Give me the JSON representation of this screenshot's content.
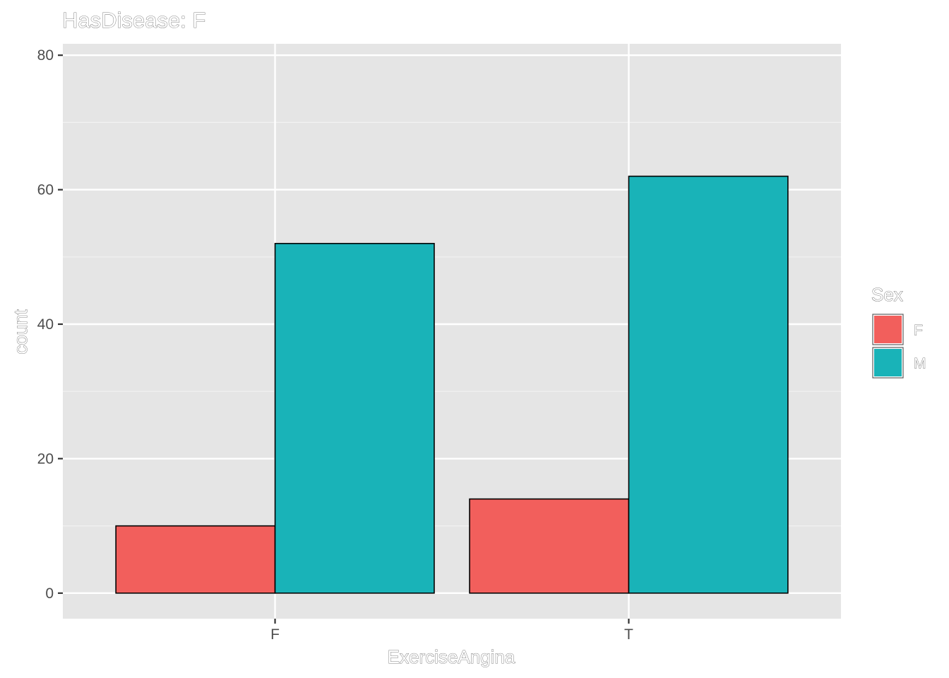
{
  "chart_data": {
    "type": "bar",
    "title": "HasDisease: F",
    "xlabel": "ExerciseAngina",
    "ylabel": "count",
    "categories": [
      "F",
      "T"
    ],
    "series": [
      {
        "name": "F",
        "color": "#F25F5C",
        "values": [
          10,
          14
        ]
      },
      {
        "name": "M",
        "color": "#19B3B8",
        "values": [
          52,
          62
        ]
      }
    ],
    "ylim": [
      -3.8,
      81.7
    ],
    "yticks": [
      0,
      20,
      40,
      60,
      80
    ],
    "grid": true,
    "legend": {
      "title": "Sex",
      "position": "right"
    }
  }
}
